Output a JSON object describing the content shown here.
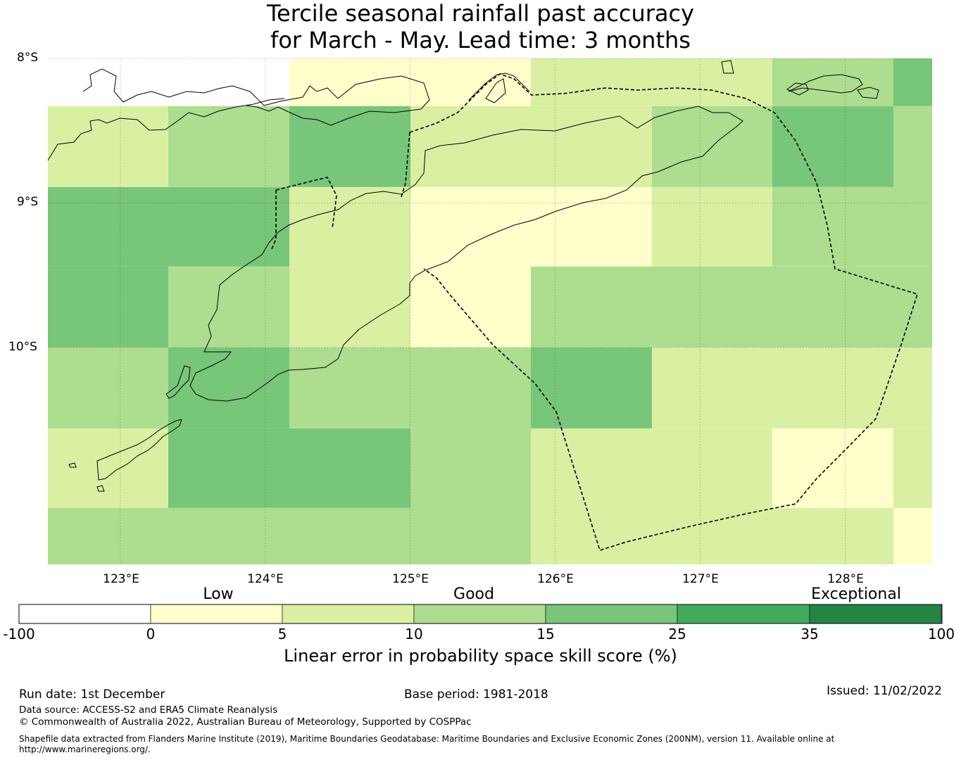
{
  "title": {
    "line1": "Tercile seasonal rainfall past accuracy",
    "line2": "for March - May. Lead time: 3 months"
  },
  "map": {
    "lat_labels": [
      "8°S",
      "9°S",
      "10°S"
    ],
    "lon_labels": [
      "123°E",
      "124°E",
      "125°E",
      "126°E",
      "127°E",
      "128°E"
    ],
    "extent": {
      "lon": [
        122.5,
        128.6
      ],
      "lat": [
        -11.5,
        -8.0
      ]
    },
    "legend_colors": {
      "below_0": "#ffffff",
      "0_5": "#ffffcc",
      "5_10": "#d9f0a3",
      "10_15": "#addd8e",
      "15_25": "#78c679",
      "25_35": "#41ab5d",
      "35_100": "#238443"
    },
    "grid_rows": [
      {
        "lat_top": -8.0,
        "lat_bottom": -8.33,
        "cells": [
          null,
          null,
          "0_5",
          "0_5",
          "5_10",
          "5_10",
          "10_15",
          "15_25"
        ]
      },
      {
        "lat_top": -8.33,
        "lat_bottom": -8.89,
        "cells": [
          "5_10",
          "10_15",
          "15_25",
          "5_10",
          "5_10",
          "10_15",
          "15_25",
          "10_15"
        ]
      },
      {
        "lat_top": -8.89,
        "lat_bottom": -9.44,
        "cells": [
          "15_25",
          "15_25",
          "5_10",
          "0_5",
          "0_5",
          "5_10",
          "10_15",
          "10_15"
        ]
      },
      {
        "lat_top": -9.44,
        "lat_bottom": -10.0,
        "cells": [
          "15_25",
          "10_15",
          "5_10",
          "0_5",
          "10_15",
          "10_15",
          "10_15",
          "10_15"
        ]
      },
      {
        "lat_top": -10.0,
        "lat_bottom": -10.56,
        "cells": [
          "10_15",
          "15_25",
          "10_15",
          "10_15",
          "15_25",
          "5_10",
          "5_10",
          "5_10"
        ]
      },
      {
        "lat_top": -10.56,
        "lat_bottom": -11.11,
        "cells": [
          "5_10",
          "15_25",
          "15_25",
          "10_15",
          "5_10",
          "5_10",
          "0_5",
          "5_10"
        ]
      },
      {
        "lat_top": -11.11,
        "lat_bottom": -11.5,
        "cells": [
          "10_15",
          "10_15",
          "10_15",
          "10_15",
          "5_10",
          "5_10",
          "5_10",
          "0_5"
        ]
      }
    ]
  },
  "colorbar": {
    "categories": [
      "Low",
      "Good",
      "Exceptional"
    ],
    "ticks": [
      "-100",
      "0",
      "5",
      "10",
      "15",
      "25",
      "35",
      "100"
    ],
    "colors": [
      "#ffffff",
      "#ffffcc",
      "#d9f0a3",
      "#addd8e",
      "#78c679",
      "#41ab5d",
      "#238443"
    ],
    "label": "Linear error in probability space skill score (%)"
  },
  "footer": {
    "run_date": "Run date: 1st December",
    "base_period": "Base period: 1981-2018",
    "issued": "Issued: 11/02/2022",
    "data_source": "Data source: ACCESS-S2 and ERA5 Climate Reanalysis",
    "copyright": "© Commonwealth of Australia 2022, Australian Bureau of Meteorology, Supported by COSPPac",
    "shapefile_line1": "Shapefile data extracted from Flanders Marine Institute (2019), Maritime Boundaries Geodatabase: Maritime Boundaries and Exclusive Economic Zones (200NM), version 11. Available online at",
    "shapefile_line2": "http://www.marineregions.org/."
  }
}
